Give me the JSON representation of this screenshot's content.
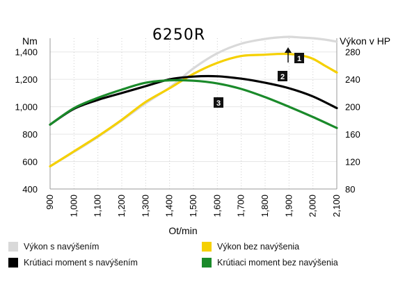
{
  "chart_data": {
    "type": "line",
    "title": "6250R",
    "xlabel": "Ot/min",
    "ylabel_left": "Nm",
    "ylabel_right": "Výkon v HP",
    "x_ticks": [
      "900",
      "1,000",
      "1,100",
      "1,200",
      "1,300",
      "1,400",
      "1,500",
      "1,600",
      "1,700",
      "1,800",
      "1,900",
      "2,000",
      "2,100"
    ],
    "y_left_ticks": [
      "400",
      "600",
      "800",
      "1,000",
      "1,200",
      "1,400"
    ],
    "y_right_ticks": [
      "80",
      "120",
      "160",
      "200",
      "240",
      "280"
    ],
    "xlim": [
      900,
      2100
    ],
    "ylim_left": [
      400,
      1500
    ],
    "ylim_right": [
      80,
      300
    ],
    "series": [
      {
        "name": "Výkon s navýšením",
        "axis": "right",
        "color": "#d9d9d9",
        "x": [
          900,
          1000,
          1100,
          1200,
          1300,
          1400,
          1500,
          1600,
          1700,
          1800,
          1850,
          1900,
          1950,
          2000,
          2050,
          2100
        ],
        "values": [
          113,
          134,
          156,
          180,
          205,
          228,
          256,
          278,
          292,
          299,
          301,
          302,
          301,
          300,
          298,
          295
        ]
      },
      {
        "name": "Výkon bez navýšenia",
        "axis": "right",
        "color": "#f5d000",
        "x": [
          900,
          1000,
          1100,
          1200,
          1300,
          1400,
          1500,
          1600,
          1700,
          1800,
          1850,
          1900,
          1950,
          2000,
          2050,
          2100
        ],
        "values": [
          113,
          135,
          157,
          181,
          207,
          227,
          248,
          264,
          274,
          276,
          277,
          277,
          275,
          270,
          260,
          250
        ]
      },
      {
        "name": "Krútiaci moment s navýšením",
        "axis": "left",
        "color": "#000000",
        "x": [
          900,
          1000,
          1100,
          1200,
          1300,
          1400,
          1500,
          1600,
          1700,
          1800,
          1900,
          2000,
          2100
        ],
        "values": [
          870,
          985,
          1050,
          1100,
          1150,
          1200,
          1220,
          1222,
          1205,
          1175,
          1135,
          1075,
          990
        ]
      },
      {
        "name": "Krútiaci moment bez navýšenia",
        "axis": "left",
        "color": "#1a8a2a",
        "x": [
          900,
          1000,
          1100,
          1200,
          1300,
          1400,
          1500,
          1600,
          1700,
          1800,
          1900,
          2000,
          2100
        ],
        "values": [
          870,
          990,
          1065,
          1125,
          1175,
          1193,
          1190,
          1170,
          1130,
          1070,
          1000,
          925,
          845
        ]
      }
    ],
    "annotations": [
      {
        "label": "1"
      },
      {
        "label": "2"
      },
      {
        "label": "3"
      }
    ],
    "grid": true,
    "legend_position": "bottom"
  }
}
